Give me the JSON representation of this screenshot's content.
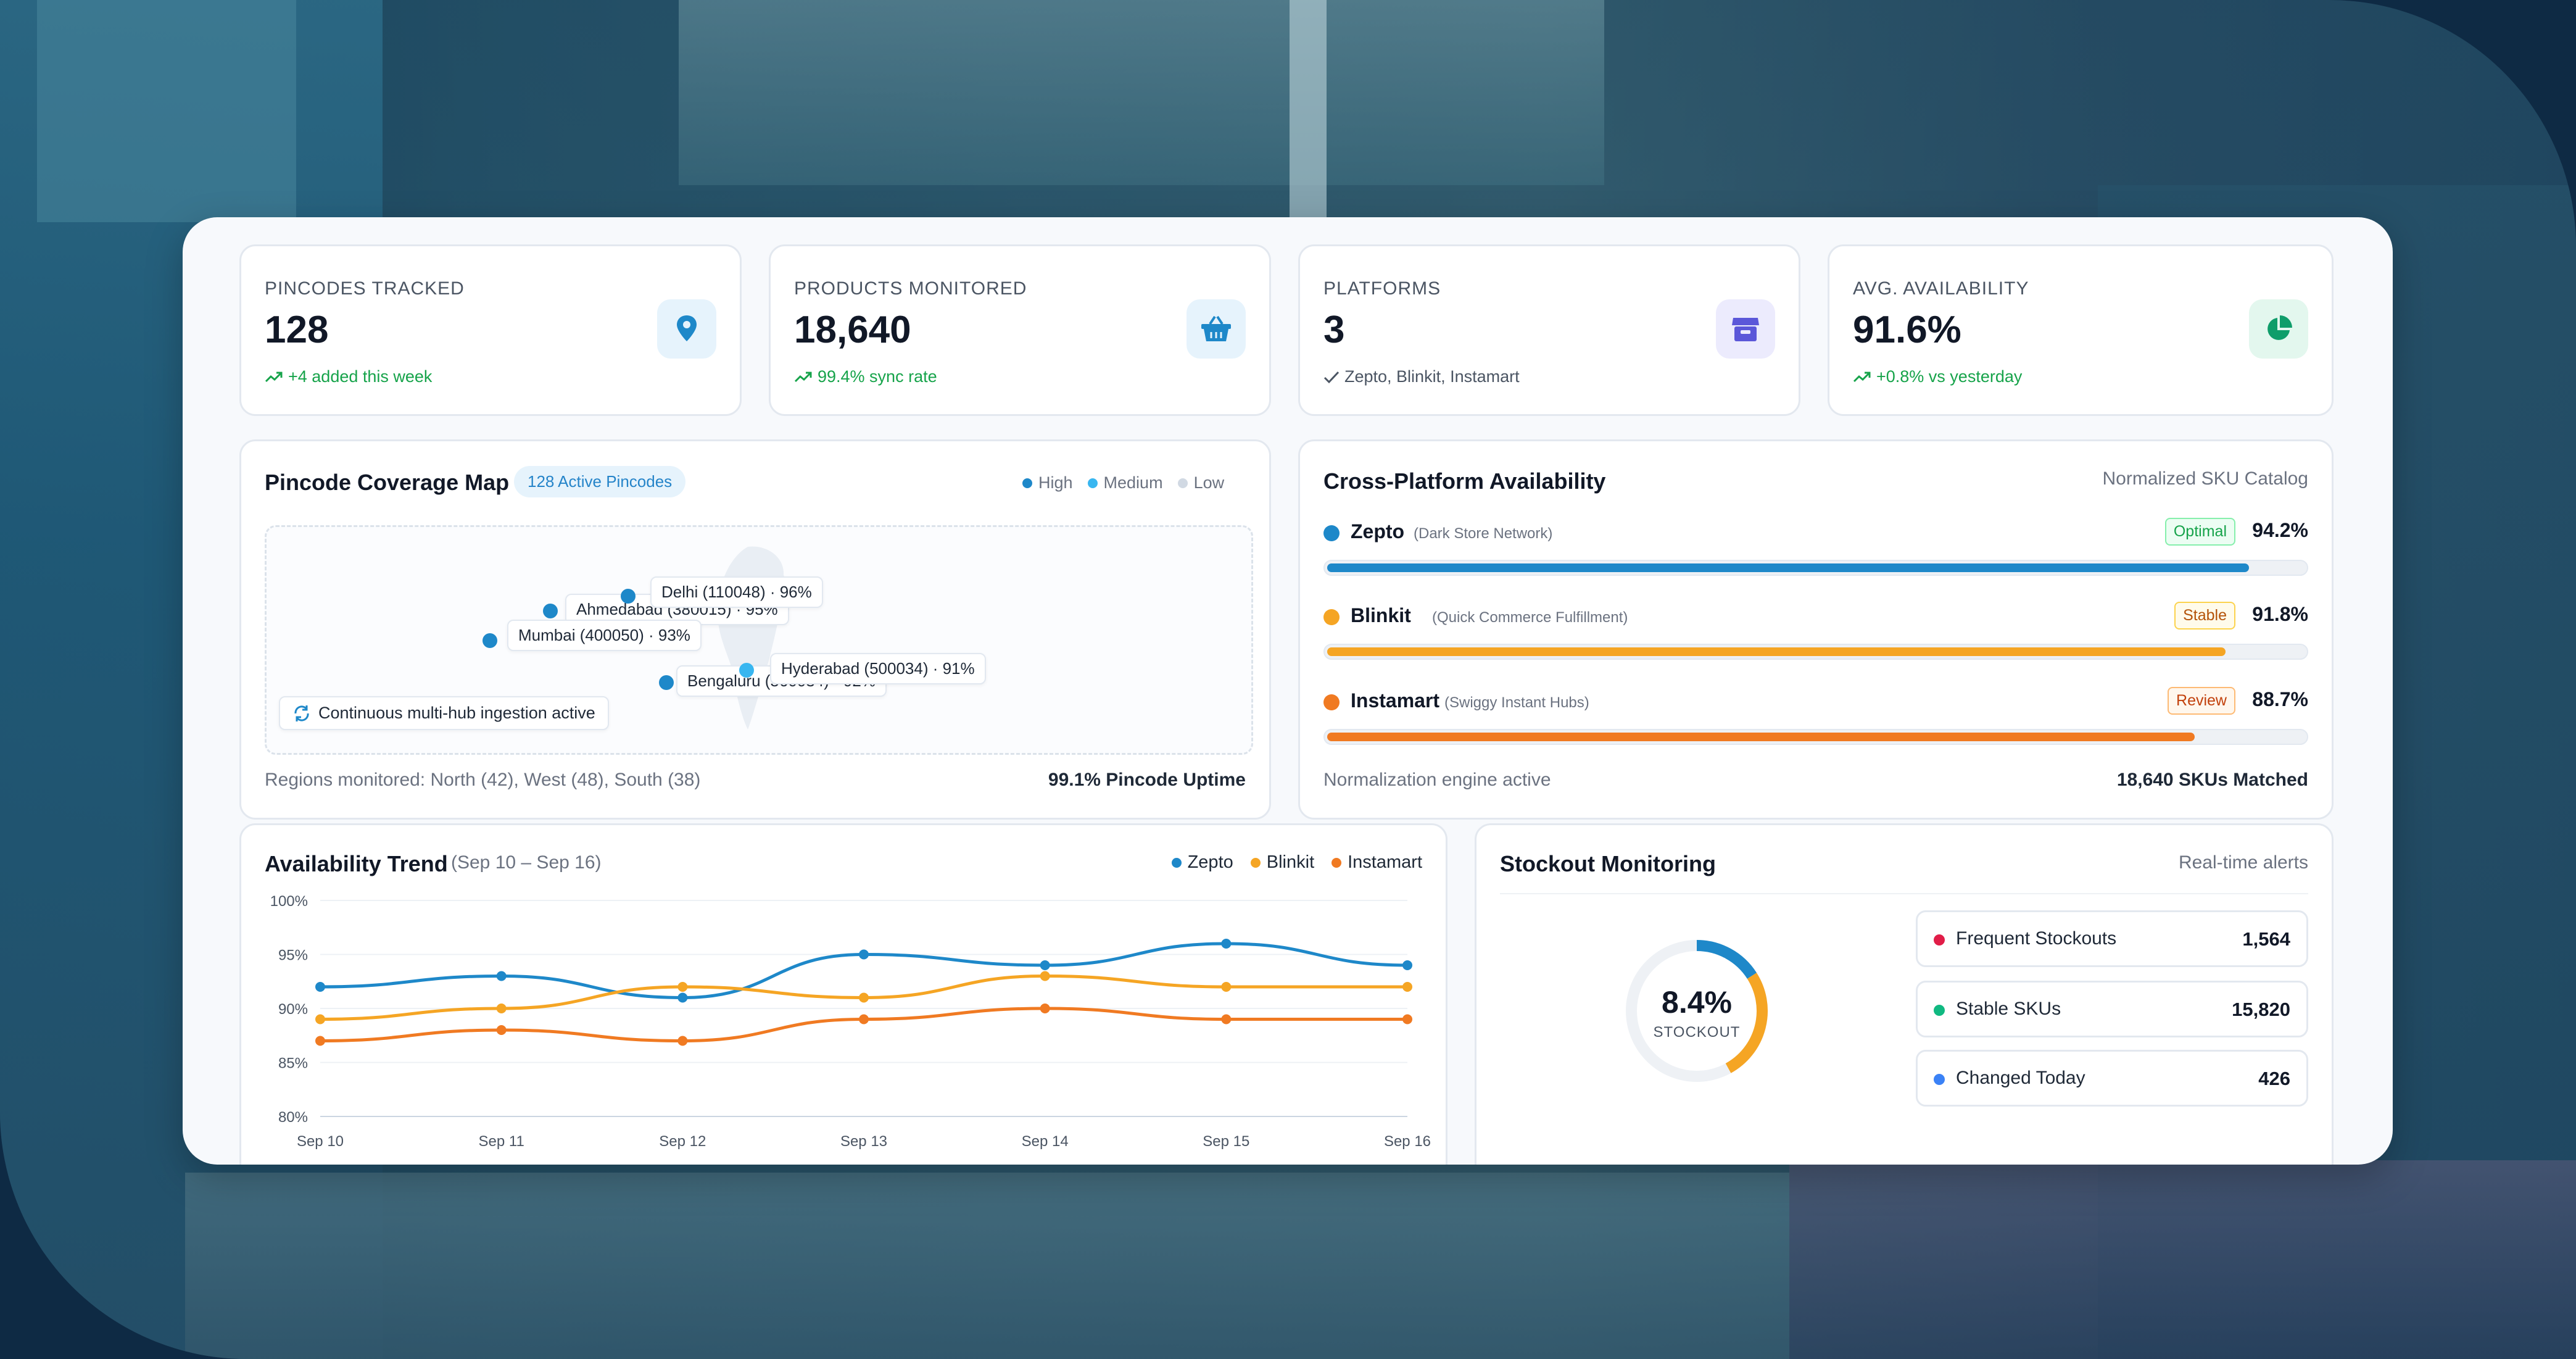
{
  "stats": [
    {
      "label": "PINCODES TRACKED",
      "value": "128",
      "sub": "+4 added this week",
      "icon": "map-pin-icon"
    },
    {
      "label": "PRODUCTS MONITORED",
      "value": "18,640",
      "sub": "99.4% sync rate",
      "icon": "basket-icon"
    },
    {
      "label": "PLATFORMS",
      "value": "3",
      "sub": "Zepto, Blinkit, Instamart",
      "icon": "store-icon"
    },
    {
      "label": "AVG. AVAILABILITY",
      "value": "91.6%",
      "sub": "+0.8% vs yesterday",
      "icon": "pie-chart-icon"
    }
  ],
  "colors": {
    "zepto": "#1e88c9",
    "blinkit": "#f5a524",
    "instamart": "#f07a22",
    "green": "#16a34a"
  },
  "map": {
    "title": "Pincode Coverage Map",
    "badge": "128 Active Pincodes",
    "legend": [
      "High",
      "Medium",
      "Low"
    ],
    "labels": {
      "delhi": "Delhi (110048) · 96%",
      "ahmedabad": "Ahmedabad (380015) · 95%",
      "mumbai": "Mumbai (400050) · 93%",
      "bengaluru": "Bengaluru (560034) · 92%",
      "hyderabad": "Hyderabad (500034) · 91%"
    },
    "ingest": "Continuous multi-hub ingestion active",
    "regions": "Regions monitored: North (42), West (48), South (38)",
    "uptime": "99.1% Pincode Uptime"
  },
  "cross": {
    "title": "Cross-Platform Availability",
    "subtitle": "Normalized SKU Catalog",
    "platforms": [
      {
        "name": "Zepto",
        "desc": "(Dark Store Network)",
        "status": "Optimal",
        "pct": "94.2%",
        "value": 94.2
      },
      {
        "name": "Blinkit",
        "desc": "(Quick Commerce Fulfillment)",
        "status": "Stable",
        "pct": "91.8%",
        "value": 91.8
      },
      {
        "name": "Instamart",
        "desc": "(Swiggy Instant Hubs)",
        "status": "Review",
        "pct": "88.7%",
        "value": 88.7
      }
    ],
    "engine": "Normalization engine active",
    "matched": "18,640 SKUs Matched"
  },
  "trend": {
    "title": "Availability Trend",
    "range": "(Sep 10 – Sep 16)"
  },
  "chart_data": {
    "type": "line",
    "x": [
      "Sep 10",
      "Sep 11",
      "Sep 12",
      "Sep 13",
      "Sep 14",
      "Sep 15",
      "Sep 16"
    ],
    "series": [
      {
        "name": "Zepto",
        "values": [
          92,
          93,
          91,
          95,
          94,
          96,
          94
        ]
      },
      {
        "name": "Blinkit",
        "values": [
          89,
          90,
          92,
          91,
          93,
          92,
          92
        ]
      },
      {
        "name": "Instamart",
        "values": [
          87,
          88,
          87,
          89,
          90,
          89,
          89
        ]
      }
    ],
    "yticks": [
      "100%",
      "95%",
      "90%",
      "85%",
      "80%"
    ],
    "ylim": [
      80,
      100
    ],
    "grid": true,
    "legend_position": "top-right"
  },
  "stockout": {
    "title": "Stockout Monitoring",
    "subtitle": "Real-time alerts",
    "gauge_value": "8.4%",
    "gauge_label": "STOCKOUT",
    "gauge_fraction": 0.42,
    "metrics": [
      {
        "label": "Frequent Stockouts",
        "value": "1,564",
        "color": "#e11d48"
      },
      {
        "label": "Stable SKUs",
        "value": "15,820",
        "color": "#10b981"
      },
      {
        "label": "Changed Today",
        "value": "426",
        "color": "#3b82f6"
      }
    ]
  }
}
